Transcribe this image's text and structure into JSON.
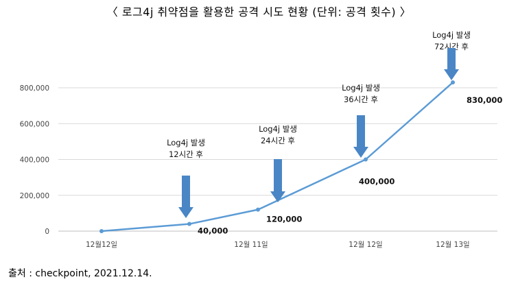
{
  "title": "〈 로그4j 취약점을 활용한 공격 시도 현황 (단위: 공격 횟수) 〉",
  "source": "출처 : checkpoint, 2021.12.14.",
  "colors": {
    "line": "#5b9bd5",
    "arrow": "#4a86c5",
    "grid": "#d9d9d9",
    "axis": "#bfbfbf"
  },
  "chart_data": {
    "type": "line",
    "title": "〈 로그4j 취약점을 활용한 공격 시도 현황 (단위: 공격 횟수) 〉",
    "categories": [
      "12월12일",
      "",
      "12월 11일",
      "12월 12일",
      "12월 13일"
    ],
    "series": [
      {
        "values": [
          0,
          40000,
          120000,
          400000,
          830000
        ]
      }
    ],
    "data_labels": [
      "",
      "40,000",
      "120,000",
      "400,000",
      "830,000"
    ],
    "y_ticks": [
      "0",
      "200,000",
      "400,000",
      "600,000",
      "800,000"
    ],
    "ylim": [
      0,
      900000
    ],
    "grid": true,
    "annotations": [
      {
        "point": 1,
        "lines": [
          "Log4j 발생",
          "12시간 후"
        ],
        "icon": "down-arrow-icon"
      },
      {
        "point": 2,
        "lines": [
          "Log4j 발생",
          "24시간 후"
        ],
        "icon": "down-arrow-icon"
      },
      {
        "point": 3,
        "lines": [
          "Log4j 발생",
          "36시간 후"
        ],
        "icon": "down-arrow-icon"
      },
      {
        "point": 4,
        "lines": [
          "Log4j 발생",
          "72시간 후"
        ],
        "icon": "down-arrow-icon"
      }
    ]
  }
}
